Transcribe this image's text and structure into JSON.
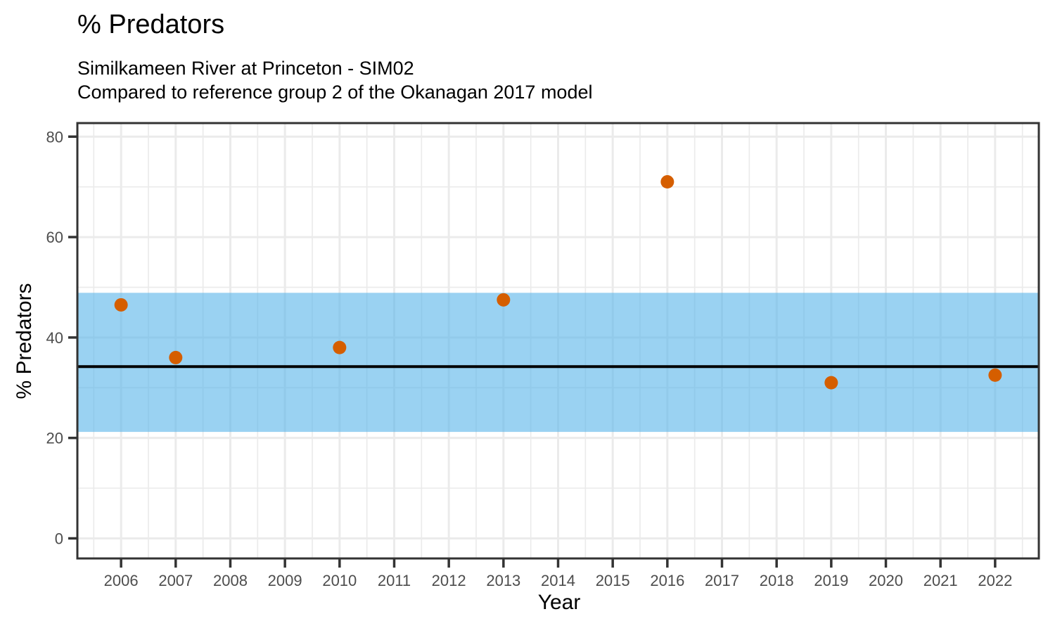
{
  "chart_data": {
    "type": "scatter",
    "title": "% Predators",
    "subtitle_line1": "Similkameen River at Princeton - SIM02",
    "subtitle_line2": "Compared to reference group 2 of the Okanagan 2017 model",
    "xlabel": "Year",
    "ylabel": "% Predators",
    "xlim": [
      2005.2,
      2022.8
    ],
    "ylim": [
      -4,
      82.7
    ],
    "x_ticks": [
      2006,
      2007,
      2008,
      2009,
      2010,
      2011,
      2012,
      2013,
      2014,
      2015,
      2016,
      2017,
      2018,
      2019,
      2020,
      2021,
      2022
    ],
    "y_ticks": [
      0,
      20,
      40,
      60,
      80
    ],
    "x_minor_gridlines": [
      2005.5,
      2006.5,
      2007.5,
      2008.5,
      2009.5,
      2010.5,
      2011.5,
      2012.5,
      2013.5,
      2014.5,
      2015.5,
      2016.5,
      2017.5,
      2018.5,
      2019.5,
      2020.5,
      2021.5,
      2022.5
    ],
    "y_minor_gridlines": [
      10,
      30,
      50,
      70
    ],
    "grid": "on",
    "legend_position": "none",
    "points": [
      {
        "year": 2006,
        "value": 46.5
      },
      {
        "year": 2007,
        "value": 36
      },
      {
        "year": 2010,
        "value": 38
      },
      {
        "year": 2013,
        "value": 47.5
      },
      {
        "year": 2016,
        "value": 71
      },
      {
        "year": 2019,
        "value": 31
      },
      {
        "year": 2022,
        "value": 32.5
      }
    ],
    "reference_band": {
      "low": 21.2,
      "high": 48.9
    },
    "reference_line": {
      "value": 34.2
    },
    "colors": {
      "point": "#D55E00",
      "band": "#56B4E9",
      "band_opacity": 0.6,
      "reference_line": "#000000",
      "grid": "#EBEBEB",
      "panel_border": "#333333",
      "tick": "#333333",
      "tick_label": "#4D4D4D"
    }
  }
}
